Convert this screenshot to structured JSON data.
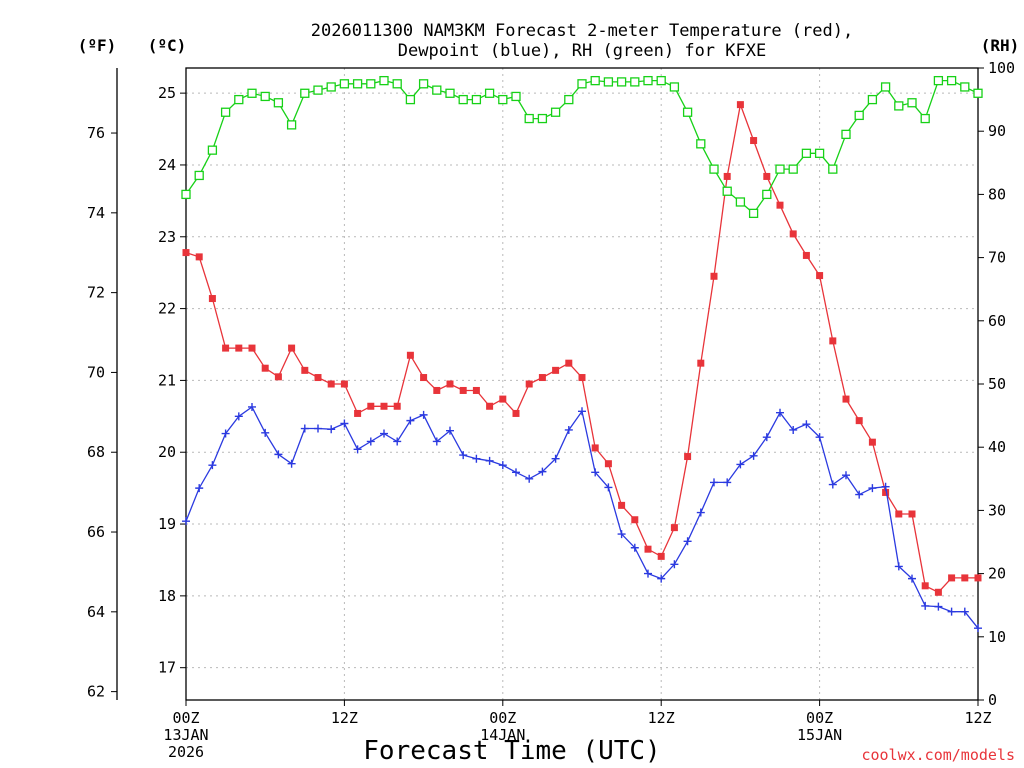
{
  "chart_data": {
    "type": "line",
    "title_line1": "2026011300 NAM3KM Forecast 2-meter Temperature (red),",
    "title_line2": "Dewpoint (blue), RH (green) for KFXE",
    "xlabel": "Forecast Time (UTC)",
    "credit": "coolwx.com/models",
    "units": {
      "fahrenheit": "(ºF)",
      "celsius": "(ºC)",
      "rh": "(RH)"
    },
    "x_range_hours": [
      0,
      60
    ],
    "x_ticks": [
      {
        "hour": 0,
        "line1": "00Z",
        "line2": "13JAN",
        "line3": "2026"
      },
      {
        "hour": 12,
        "line1": "12Z",
        "line2": "",
        "line3": ""
      },
      {
        "hour": 24,
        "line1": "00Z",
        "line2": "14JAN",
        "line3": ""
      },
      {
        "hour": 36,
        "line1": "12Z",
        "line2": "",
        "line3": ""
      },
      {
        "hour": 48,
        "line1": "00Z",
        "line2": "15JAN",
        "line3": ""
      },
      {
        "hour": 60,
        "line1": "12Z",
        "line2": "",
        "line3": ""
      }
    ],
    "celsius_range": [
      16.55,
      25.35
    ],
    "celsius_ticks": [
      17,
      18,
      19,
      20,
      21,
      22,
      23,
      24,
      25
    ],
    "fahrenheit_ticks": [
      62,
      64,
      66,
      68,
      70,
      72,
      74,
      76
    ],
    "rh_range": [
      0,
      100
    ],
    "rh_ticks": [
      0,
      10,
      20,
      30,
      40,
      50,
      60,
      70,
      80,
      90,
      100
    ],
    "hours": [
      0,
      1,
      2,
      3,
      4,
      5,
      6,
      7,
      8,
      9,
      10,
      11,
      12,
      13,
      14,
      15,
      16,
      17,
      18,
      19,
      20,
      21,
      22,
      23,
      24,
      25,
      26,
      27,
      28,
      29,
      30,
      31,
      32,
      33,
      34,
      35,
      36,
      37,
      38,
      39,
      40,
      41,
      42,
      43,
      44,
      45,
      46,
      47,
      48,
      49,
      50,
      51,
      52,
      53,
      54,
      55,
      56,
      57,
      58,
      59,
      60
    ],
    "series": [
      {
        "name": "2-meter Temperature",
        "unit": "C",
        "color": "#e8343a",
        "marker": "filled-square",
        "values": [
          22.78,
          22.72,
          22.14,
          21.45,
          21.45,
          21.45,
          21.17,
          21.05,
          21.45,
          21.14,
          21.04,
          20.95,
          20.95,
          20.54,
          20.64,
          20.64,
          20.64,
          21.35,
          21.04,
          20.86,
          20.95,
          20.86,
          20.86,
          20.64,
          20.74,
          20.54,
          20.95,
          21.04,
          21.14,
          21.24,
          21.04,
          20.06,
          19.84,
          19.26,
          19.06,
          18.65,
          18.55,
          18.95,
          19.94,
          21.24,
          22.45,
          23.84,
          24.84,
          24.34,
          23.84,
          23.44,
          23.04,
          22.74,
          22.46,
          21.55,
          20.74,
          20.44,
          20.14,
          19.44,
          19.14,
          19.14,
          18.14,
          18.05,
          18.25,
          18.25,
          18.25
        ]
      },
      {
        "name": "Dewpoint",
        "unit": "C",
        "color": "#2b3ae0",
        "marker": "plus",
        "values": [
          19.04,
          19.5,
          19.82,
          20.26,
          20.5,
          20.63,
          20.27,
          19.97,
          19.84,
          20.33,
          20.33,
          20.32,
          20.4,
          20.04,
          20.15,
          20.26,
          20.15,
          20.44,
          20.52,
          20.15,
          20.3,
          19.96,
          19.91,
          19.88,
          19.82,
          19.72,
          19.63,
          19.73,
          19.91,
          20.31,
          20.57,
          19.72,
          19.51,
          18.86,
          18.67,
          18.31,
          18.24,
          18.44,
          18.76,
          19.16,
          19.58,
          19.58,
          19.83,
          19.95,
          20.21,
          20.55,
          20.31,
          20.39,
          20.21,
          19.55,
          19.68,
          19.41,
          19.5,
          19.52,
          18.41,
          18.24,
          17.86,
          17.85,
          17.78,
          17.78,
          17.55
        ]
      },
      {
        "name": "RH",
        "unit": "%",
        "color": "#17d117",
        "marker": "open-square",
        "values": [
          80,
          83,
          87,
          93,
          95,
          96,
          95.5,
          94.5,
          91,
          96,
          96.5,
          97,
          97.5,
          97.5,
          97.5,
          98,
          97.5,
          95,
          97.5,
          96.5,
          96,
          95,
          95,
          96,
          95,
          95.5,
          92,
          92,
          93,
          95,
          97.5,
          98,
          97.8,
          97.8,
          97.8,
          98,
          98,
          97,
          93,
          88,
          84,
          80.5,
          78.8,
          77,
          80,
          84,
          84,
          86.5,
          86.5,
          84,
          89.5,
          92.5,
          95,
          97,
          94,
          94.5,
          92,
          98,
          98,
          97,
          96
        ]
      }
    ]
  }
}
